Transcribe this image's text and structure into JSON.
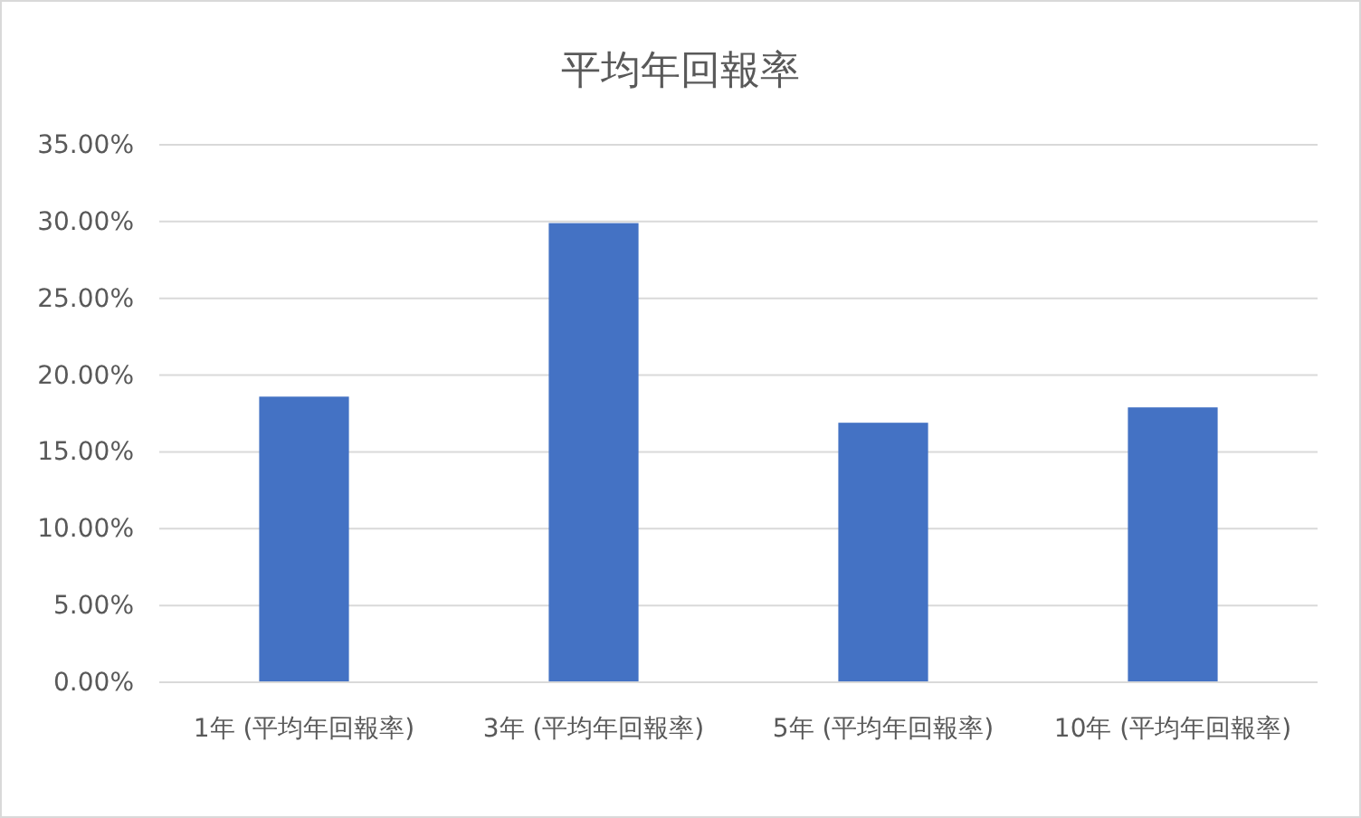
{
  "chart_data": {
    "type": "bar",
    "title": "平均年回報率",
    "categories": [
      "1年 (平均年回報率)",
      "3年 (平均年回報率)",
      "5年 (平均年回報率)",
      "10年 (平均年回報率)"
    ],
    "values": [
      18.6,
      29.9,
      16.9,
      17.9
    ],
    "color": "#4472c4",
    "ylim": [
      0,
      35
    ],
    "yticks": [
      {
        "value": 0,
        "label": "0.00%"
      },
      {
        "value": 5,
        "label": "5.00%"
      },
      {
        "value": 10,
        "label": "10.00%"
      },
      {
        "value": 15,
        "label": "15.00%"
      },
      {
        "value": 20,
        "label": "20.00%"
      },
      {
        "value": 25,
        "label": "25.00%"
      },
      {
        "value": 30,
        "label": "30.00%"
      },
      {
        "value": 35,
        "label": "35.00%"
      }
    ],
    "grid": "y"
  }
}
